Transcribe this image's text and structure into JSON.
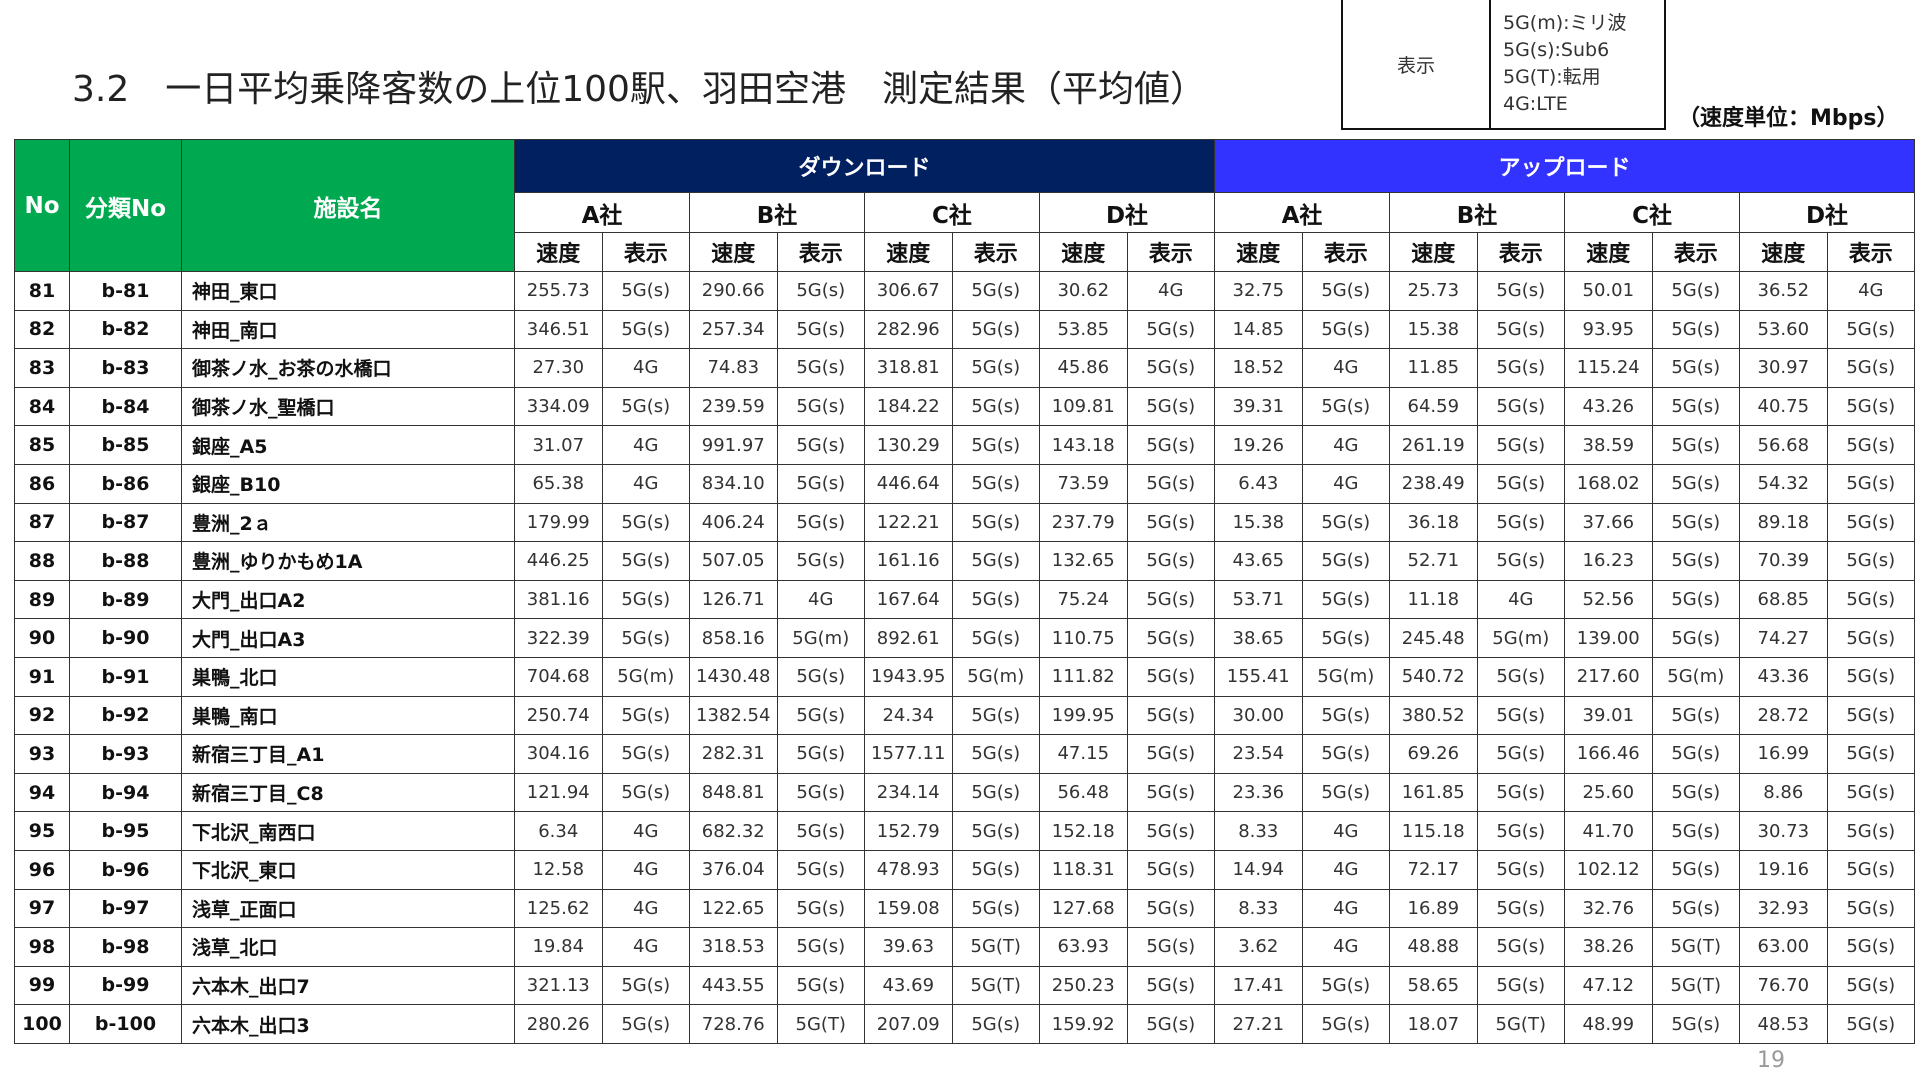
{
  "title": "3.2　一日平均乗降客数の上位100駅、羽田空港　測定結果（平均値）",
  "legend": {
    "key": "表示",
    "values": [
      "5G(m):ミリ波",
      "5G(s):Sub6",
      "5G(T):転用",
      "4G:LTE"
    ]
  },
  "unit": "（速度単位：Mbps）",
  "header": {
    "no": "No",
    "class_no": "分類No",
    "facility": "施設名",
    "download": "ダウンロード",
    "upload": "アップロード",
    "companies": [
      "A社",
      "B社",
      "C社",
      "D社"
    ],
    "speed": "速度",
    "display": "表示"
  },
  "colors": {
    "green": "#00a94f",
    "download": "#002060",
    "upload": "#3333ff"
  },
  "rows": [
    [
      "81",
      "b-81",
      "神田_東口",
      "255.73",
      "5G(s)",
      "290.66",
      "5G(s)",
      "306.67",
      "5G(s)",
      "30.62",
      "4G",
      "32.75",
      "5G(s)",
      "25.73",
      "5G(s)",
      "50.01",
      "5G(s)",
      "36.52",
      "4G"
    ],
    [
      "82",
      "b-82",
      "神田_南口",
      "346.51",
      "5G(s)",
      "257.34",
      "5G(s)",
      "282.96",
      "5G(s)",
      "53.85",
      "5G(s)",
      "14.85",
      "5G(s)",
      "15.38",
      "5G(s)",
      "93.95",
      "5G(s)",
      "53.60",
      "5G(s)"
    ],
    [
      "83",
      "b-83",
      "御茶ノ水_お茶の水橋口",
      "27.30",
      "4G",
      "74.83",
      "5G(s)",
      "318.81",
      "5G(s)",
      "45.86",
      "5G(s)",
      "18.52",
      "4G",
      "11.85",
      "5G(s)",
      "115.24",
      "5G(s)",
      "30.97",
      "5G(s)"
    ],
    [
      "84",
      "b-84",
      "御茶ノ水_聖橋口",
      "334.09",
      "5G(s)",
      "239.59",
      "5G(s)",
      "184.22",
      "5G(s)",
      "109.81",
      "5G(s)",
      "39.31",
      "5G(s)",
      "64.59",
      "5G(s)",
      "43.26",
      "5G(s)",
      "40.75",
      "5G(s)"
    ],
    [
      "85",
      "b-85",
      "銀座_A5",
      "31.07",
      "4G",
      "991.97",
      "5G(s)",
      "130.29",
      "5G(s)",
      "143.18",
      "5G(s)",
      "19.26",
      "4G",
      "261.19",
      "5G(s)",
      "38.59",
      "5G(s)",
      "56.68",
      "5G(s)"
    ],
    [
      "86",
      "b-86",
      "銀座_B10",
      "65.38",
      "4G",
      "834.10",
      "5G(s)",
      "446.64",
      "5G(s)",
      "73.59",
      "5G(s)",
      "6.43",
      "4G",
      "238.49",
      "5G(s)",
      "168.02",
      "5G(s)",
      "54.32",
      "5G(s)"
    ],
    [
      "87",
      "b-87",
      "豊洲_2ａ",
      "179.99",
      "5G(s)",
      "406.24",
      "5G(s)",
      "122.21",
      "5G(s)",
      "237.79",
      "5G(s)",
      "15.38",
      "5G(s)",
      "36.18",
      "5G(s)",
      "37.66",
      "5G(s)",
      "89.18",
      "5G(s)"
    ],
    [
      "88",
      "b-88",
      "豊洲_ゆりかもめ1A",
      "446.25",
      "5G(s)",
      "507.05",
      "5G(s)",
      "161.16",
      "5G(s)",
      "132.65",
      "5G(s)",
      "43.65",
      "5G(s)",
      "52.71",
      "5G(s)",
      "16.23",
      "5G(s)",
      "70.39",
      "5G(s)"
    ],
    [
      "89",
      "b-89",
      "大門_出口A2",
      "381.16",
      "5G(s)",
      "126.71",
      "4G",
      "167.64",
      "5G(s)",
      "75.24",
      "5G(s)",
      "53.71",
      "5G(s)",
      "11.18",
      "4G",
      "52.56",
      "5G(s)",
      "68.85",
      "5G(s)"
    ],
    [
      "90",
      "b-90",
      "大門_出口A3",
      "322.39",
      "5G(s)",
      "858.16",
      "5G(m)",
      "892.61",
      "5G(s)",
      "110.75",
      "5G(s)",
      "38.65",
      "5G(s)",
      "245.48",
      "5G(m)",
      "139.00",
      "5G(s)",
      "74.27",
      "5G(s)"
    ],
    [
      "91",
      "b-91",
      "巣鴨_北口",
      "704.68",
      "5G(m)",
      "1430.48",
      "5G(s)",
      "1943.95",
      "5G(m)",
      "111.82",
      "5G(s)",
      "155.41",
      "5G(m)",
      "540.72",
      "5G(s)",
      "217.60",
      "5G(m)",
      "43.36",
      "5G(s)"
    ],
    [
      "92",
      "b-92",
      "巣鴨_南口",
      "250.74",
      "5G(s)",
      "1382.54",
      "5G(s)",
      "24.34",
      "5G(s)",
      "199.95",
      "5G(s)",
      "30.00",
      "5G(s)",
      "380.52",
      "5G(s)",
      "39.01",
      "5G(s)",
      "28.72",
      "5G(s)"
    ],
    [
      "93",
      "b-93",
      "新宿三丁目_A1",
      "304.16",
      "5G(s)",
      "282.31",
      "5G(s)",
      "1577.11",
      "5G(s)",
      "47.15",
      "5G(s)",
      "23.54",
      "5G(s)",
      "69.26",
      "5G(s)",
      "166.46",
      "5G(s)",
      "16.99",
      "5G(s)"
    ],
    [
      "94",
      "b-94",
      "新宿三丁目_C8",
      "121.94",
      "5G(s)",
      "848.81",
      "5G(s)",
      "234.14",
      "5G(s)",
      "56.48",
      "5G(s)",
      "23.36",
      "5G(s)",
      "161.85",
      "5G(s)",
      "25.60",
      "5G(s)",
      "8.86",
      "5G(s)"
    ],
    [
      "95",
      "b-95",
      "下北沢_南西口",
      "6.34",
      "4G",
      "682.32",
      "5G(s)",
      "152.79",
      "5G(s)",
      "152.18",
      "5G(s)",
      "8.33",
      "4G",
      "115.18",
      "5G(s)",
      "41.70",
      "5G(s)",
      "30.73",
      "5G(s)"
    ],
    [
      "96",
      "b-96",
      "下北沢_東口",
      "12.58",
      "4G",
      "376.04",
      "5G(s)",
      "478.93",
      "5G(s)",
      "118.31",
      "5G(s)",
      "14.94",
      "4G",
      "72.17",
      "5G(s)",
      "102.12",
      "5G(s)",
      "19.16",
      "5G(s)"
    ],
    [
      "97",
      "b-97",
      "浅草_正面口",
      "125.62",
      "4G",
      "122.65",
      "5G(s)",
      "159.08",
      "5G(s)",
      "127.68",
      "5G(s)",
      "8.33",
      "4G",
      "16.89",
      "5G(s)",
      "32.76",
      "5G(s)",
      "32.93",
      "5G(s)"
    ],
    [
      "98",
      "b-98",
      "浅草_北口",
      "19.84",
      "4G",
      "318.53",
      "5G(s)",
      "39.63",
      "5G(T)",
      "63.93",
      "5G(s)",
      "3.62",
      "4G",
      "48.88",
      "5G(s)",
      "38.26",
      "5G(T)",
      "63.00",
      "5G(s)"
    ],
    [
      "99",
      "b-99",
      "六本木_出口7",
      "321.13",
      "5G(s)",
      "443.55",
      "5G(s)",
      "43.69",
      "5G(T)",
      "250.23",
      "5G(s)",
      "17.41",
      "5G(s)",
      "58.65",
      "5G(s)",
      "47.12",
      "5G(T)",
      "76.70",
      "5G(s)"
    ],
    [
      "100",
      "b-100",
      "六本木_出口3",
      "280.26",
      "5G(s)",
      "728.76",
      "5G(T)",
      "207.09",
      "5G(s)",
      "159.92",
      "5G(s)",
      "27.21",
      "5G(s)",
      "18.07",
      "5G(T)",
      "48.99",
      "5G(s)",
      "48.53",
      "5G(s)"
    ]
  ],
  "page_number": "19"
}
